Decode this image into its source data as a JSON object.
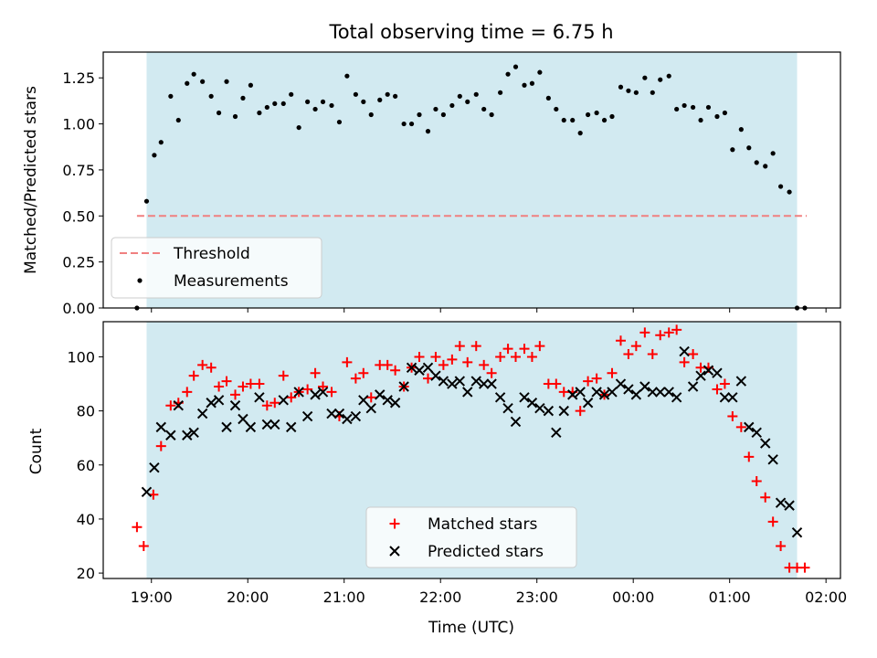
{
  "chart_data": [
    {
      "type": "scatter",
      "title": "Total observing time = 6.75 h",
      "xlabel": "",
      "ylabel": "Matched/Predicted stars",
      "xlim": [
        18.5,
        26.15
      ],
      "ylim": [
        0,
        1.39
      ],
      "yticks": [
        0.0,
        0.25,
        0.5,
        0.75,
        1.0,
        1.25
      ],
      "ytick_labels": [
        "0.00",
        "0.25",
        "0.50",
        "0.75",
        "1.00",
        "1.25"
      ],
      "shaded_x": [
        18.95,
        25.7
      ],
      "legend_position": "lower-left",
      "colors": {
        "threshold": "#f08080",
        "measurements": "#000000",
        "shade": "#add8e6"
      },
      "threshold": {
        "name": "Threshold",
        "y": 0.5,
        "x": [
          18.85,
          25.8
        ]
      },
      "series": [
        {
          "name": "Measurements",
          "x": [
            18.85,
            18.95,
            19.03,
            19.1,
            19.2,
            19.28,
            19.37,
            19.44,
            19.53,
            19.62,
            19.7,
            19.78,
            19.87,
            19.95,
            20.03,
            20.12,
            20.2,
            20.28,
            20.37,
            20.45,
            20.53,
            20.62,
            20.7,
            20.78,
            20.87,
            20.95,
            21.03,
            21.12,
            21.2,
            21.28,
            21.37,
            21.45,
            21.53,
            21.62,
            21.7,
            21.78,
            21.87,
            21.95,
            22.03,
            22.12,
            22.2,
            22.28,
            22.37,
            22.45,
            22.53,
            22.62,
            22.7,
            22.78,
            22.87,
            22.95,
            23.03,
            23.12,
            23.2,
            23.28,
            23.37,
            23.45,
            23.53,
            23.62,
            23.7,
            23.78,
            23.87,
            23.95,
            24.03,
            24.12,
            24.2,
            24.28,
            24.37,
            24.45,
            24.53,
            24.62,
            24.7,
            24.78,
            24.87,
            24.95,
            25.03,
            25.12,
            25.2,
            25.28,
            25.37,
            25.45,
            25.53,
            25.62,
            25.7,
            25.78
          ],
          "y": [
            0.0,
            0.58,
            0.83,
            0.9,
            1.15,
            1.02,
            1.22,
            1.27,
            1.23,
            1.15,
            1.06,
            1.23,
            1.04,
            1.14,
            1.21,
            1.06,
            1.09,
            1.11,
            1.11,
            1.16,
            0.98,
            1.12,
            1.08,
            1.12,
            1.1,
            1.01,
            1.26,
            1.16,
            1.12,
            1.05,
            1.13,
            1.16,
            1.15,
            1.0,
            1.0,
            1.05,
            0.96,
            1.08,
            1.05,
            1.1,
            1.15,
            1.12,
            1.16,
            1.08,
            1.05,
            1.17,
            1.27,
            1.31,
            1.21,
            1.22,
            1.28,
            1.14,
            1.08,
            1.02,
            1.02,
            0.95,
            1.05,
            1.06,
            1.02,
            1.04,
            1.2,
            1.18,
            1.17,
            1.25,
            1.17,
            1.24,
            1.26,
            1.08,
            1.1,
            1.09,
            1.02,
            1.09,
            1.04,
            1.06,
            0.86,
            0.97,
            0.87,
            0.79,
            0.77,
            0.84,
            0.66,
            0.63,
            0.0,
            0.0
          ]
        }
      ]
    },
    {
      "type": "scatter",
      "title": "",
      "xlabel": "Time (UTC)",
      "ylabel": "Count",
      "xlim": [
        18.5,
        26.15
      ],
      "ylim": [
        18,
        113
      ],
      "yticks": [
        20,
        40,
        60,
        80,
        100
      ],
      "ytick_labels": [
        "20",
        "40",
        "60",
        "80",
        "100"
      ],
      "xticks": [
        19,
        20,
        21,
        22,
        23,
        24,
        25,
        26
      ],
      "xtick_labels": [
        "19:00",
        "20:00",
        "21:00",
        "22:00",
        "23:00",
        "00:00",
        "01:00",
        "02:00"
      ],
      "shaded_x": [
        18.95,
        25.7
      ],
      "legend_position": "lower-center",
      "colors": {
        "matched": "#ff0000",
        "predicted": "#000000",
        "shade": "#add8e6"
      },
      "series": [
        {
          "name": "Matched stars",
          "marker": "+",
          "x": [
            18.85,
            18.92,
            19.02,
            19.1,
            19.2,
            19.28,
            19.37,
            19.44,
            19.53,
            19.62,
            19.7,
            19.78,
            19.87,
            19.95,
            20.03,
            20.12,
            20.2,
            20.28,
            20.37,
            20.45,
            20.53,
            20.62,
            20.7,
            20.78,
            20.87,
            20.95,
            21.03,
            21.12,
            21.2,
            21.28,
            21.37,
            21.45,
            21.53,
            21.62,
            21.7,
            21.78,
            21.87,
            21.95,
            22.03,
            22.12,
            22.2,
            22.28,
            22.37,
            22.45,
            22.53,
            22.62,
            22.7,
            22.78,
            22.87,
            22.95,
            23.03,
            23.12,
            23.2,
            23.28,
            23.37,
            23.45,
            23.53,
            23.62,
            23.7,
            23.78,
            23.87,
            23.95,
            24.03,
            24.12,
            24.2,
            24.28,
            24.37,
            24.45,
            24.53,
            24.62,
            24.7,
            24.78,
            24.87,
            24.95,
            25.03,
            25.12,
            25.2,
            25.28,
            25.37,
            25.45,
            25.53,
            25.62,
            25.7,
            25.78
          ],
          "y": [
            37,
            30,
            49,
            67,
            82,
            83,
            87,
            93,
            97,
            96,
            89,
            91,
            86,
            89,
            90,
            90,
            82,
            83,
            93,
            85,
            87,
            88,
            94,
            89,
            87,
            78,
            98,
            92,
            94,
            85,
            97,
            97,
            95,
            89,
            96,
            100,
            92,
            100,
            97,
            99,
            104,
            98,
            104,
            97,
            94,
            100,
            103,
            100,
            103,
            100,
            104,
            90,
            90,
            87,
            87,
            80,
            91,
            92,
            86,
            94,
            106,
            101,
            104,
            109,
            101,
            108,
            109,
            110,
            98,
            101,
            96,
            96,
            88,
            90,
            78,
            74,
            63,
            54,
            48,
            39,
            30,
            22,
            22,
            22
          ]
        },
        {
          "name": "Predicted stars",
          "marker": "x",
          "x": [
            18.95,
            19.03,
            19.1,
            19.2,
            19.28,
            19.37,
            19.44,
            19.53,
            19.62,
            19.7,
            19.78,
            19.87,
            19.95,
            20.03,
            20.12,
            20.2,
            20.28,
            20.37,
            20.45,
            20.53,
            20.62,
            20.7,
            20.78,
            20.87,
            20.95,
            21.03,
            21.12,
            21.2,
            21.28,
            21.37,
            21.45,
            21.53,
            21.62,
            21.7,
            21.78,
            21.87,
            21.95,
            22.03,
            22.12,
            22.2,
            22.28,
            22.37,
            22.45,
            22.53,
            22.62,
            22.7,
            22.78,
            22.87,
            22.95,
            23.03,
            23.12,
            23.2,
            23.28,
            23.37,
            23.45,
            23.53,
            23.62,
            23.7,
            23.78,
            23.87,
            23.95,
            24.03,
            24.12,
            24.2,
            24.28,
            24.37,
            24.45,
            24.53,
            24.62,
            24.7,
            24.78,
            24.87,
            24.95,
            25.03,
            25.12,
            25.2,
            25.28,
            25.37,
            25.45,
            25.53,
            25.62,
            25.7
          ],
          "y": [
            50,
            59,
            74,
            71,
            82,
            71,
            72,
            79,
            83,
            84,
            74,
            82,
            77,
            74,
            85,
            75,
            75,
            84,
            74,
            87,
            78,
            86,
            87,
            79,
            79,
            77,
            78,
            84,
            81,
            86,
            84,
            83,
            89,
            96,
            95,
            96,
            93,
            91,
            90,
            91,
            87,
            91,
            90,
            90,
            85,
            81,
            76,
            85,
            83,
            81,
            80,
            72,
            80,
            86,
            87,
            83,
            87,
            86,
            87,
            90,
            88,
            86,
            89,
            87,
            87,
            87,
            85,
            102,
            89,
            93,
            95,
            94,
            85,
            85,
            91,
            74,
            72,
            68,
            62,
            46,
            45,
            35
          ]
        }
      ]
    }
  ]
}
